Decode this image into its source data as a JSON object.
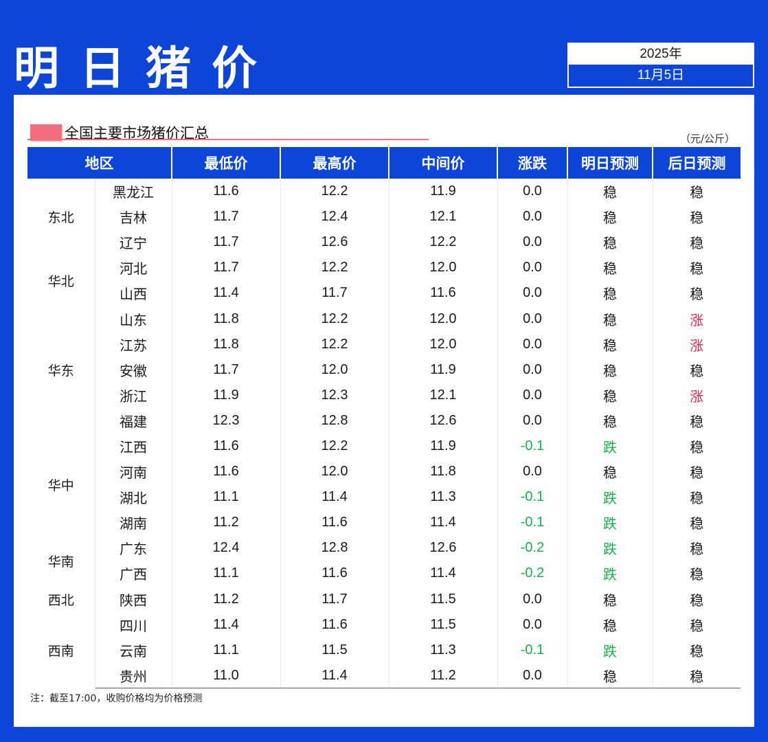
{
  "header": {
    "title": "明日猪价",
    "year": "2025年",
    "date": "11月5日"
  },
  "section": {
    "title": "全国主要市场猪价汇总",
    "unit": "（元/公斤）"
  },
  "columns": [
    "地区",
    "最低价",
    "最高价",
    "中间价",
    "涨跌",
    "明日预测",
    "后日预测"
  ],
  "regions": [
    {
      "name": "东北",
      "rows": [
        [
          "黑龙江",
          "11.6",
          "12.2",
          "11.9",
          "0.0",
          "稳",
          "稳"
        ],
        [
          "吉林",
          "11.7",
          "12.4",
          "12.1",
          "0.0",
          "稳",
          "稳"
        ],
        [
          "辽宁",
          "11.7",
          "12.6",
          "12.2",
          "0.0",
          "稳",
          "稳"
        ]
      ]
    },
    {
      "name": "华北",
      "rows": [
        [
          "河北",
          "11.7",
          "12.2",
          "12.0",
          "0.0",
          "稳",
          "稳"
        ],
        [
          "山西",
          "11.4",
          "11.7",
          "11.6",
          "0.0",
          "稳",
          "稳"
        ]
      ]
    },
    {
      "name": "华东",
      "rows": [
        [
          "山东",
          "11.8",
          "12.2",
          "12.0",
          "0.0",
          "稳",
          "涨"
        ],
        [
          "江苏",
          "11.8",
          "12.2",
          "12.0",
          "0.0",
          "稳",
          "涨"
        ],
        [
          "安徽",
          "11.7",
          "12.0",
          "11.9",
          "0.0",
          "稳",
          "稳"
        ],
        [
          "浙江",
          "11.9",
          "12.3",
          "12.1",
          "0.0",
          "稳",
          "涨"
        ],
        [
          "福建",
          "12.3",
          "12.8",
          "12.6",
          "0.0",
          "稳",
          "稳"
        ]
      ]
    },
    {
      "name": "华中",
      "rows": [
        [
          "江西",
          "11.6",
          "12.2",
          "11.9",
          "-0.1",
          "跌",
          "稳"
        ],
        [
          "河南",
          "11.6",
          "12.0",
          "11.8",
          "0.0",
          "稳",
          "稳"
        ],
        [
          "湖北",
          "11.1",
          "11.4",
          "11.3",
          "-0.1",
          "跌",
          "稳"
        ],
        [
          "湖南",
          "11.2",
          "11.6",
          "11.4",
          "-0.1",
          "跌",
          "稳"
        ]
      ]
    },
    {
      "name": "华南",
      "rows": [
        [
          "广东",
          "12.4",
          "12.8",
          "12.6",
          "-0.2",
          "跌",
          "稳"
        ],
        [
          "广西",
          "11.1",
          "11.6",
          "11.4",
          "-0.2",
          "跌",
          "稳"
        ]
      ]
    },
    {
      "name": "西北",
      "rows": [
        [
          "陕西",
          "11.2",
          "11.7",
          "11.5",
          "0.0",
          "稳",
          "稳"
        ]
      ]
    },
    {
      "name": "西南",
      "rows": [
        [
          "四川",
          "11.4",
          "11.6",
          "11.5",
          "0.0",
          "稳",
          "稳"
        ],
        [
          "云南",
          "11.1",
          "11.5",
          "11.3",
          "-0.1",
          "跌",
          "稳"
        ],
        [
          "贵州",
          "11.0",
          "11.4",
          "11.2",
          "0.0",
          "稳",
          "稳"
        ]
      ]
    }
  ],
  "colors": {
    "up": "#e0284c",
    "down": "#13b34a",
    "brand": "#0d45d8"
  },
  "note": "注：截至17:00，收购价格均为价格预测"
}
